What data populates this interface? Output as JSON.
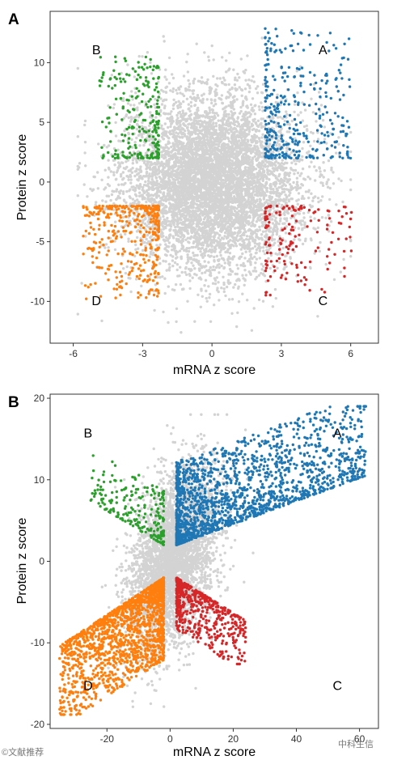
{
  "chart_data": [
    {
      "type": "scatter",
      "panel": "A",
      "xlabel": "mRNA z score",
      "ylabel": "Protein z score",
      "xlim": [
        -7,
        7.2
      ],
      "ylim": [
        -13.5,
        14.3
      ],
      "xticks": [
        -6,
        -3,
        0,
        3,
        6
      ],
      "yticks": [
        -10,
        -5,
        0,
        5,
        10
      ],
      "grid": false,
      "quadrant_labels": [
        {
          "label": "A",
          "x": 4.8,
          "y": 10.7
        },
        {
          "label": "B",
          "x": -5.0,
          "y": 10.7
        },
        {
          "label": "C",
          "x": 4.8,
          "y": -10.3
        },
        {
          "label": "D",
          "x": -5.0,
          "y": -10.3
        }
      ],
      "point_groups": [
        {
          "color": "#d3d3d3",
          "n": 6500,
          "x_range": [
            -5.8,
            6.0
          ],
          "y_range": [
            -12.6,
            12.2
          ],
          "x_sd": 1.9,
          "y_sd": 3.6
        },
        {
          "color": "#1f77b4",
          "n": 340,
          "x_range": [
            2.3,
            6.0
          ],
          "y_range": [
            2.0,
            12.9
          ]
        },
        {
          "color": "#2ca02c",
          "n": 230,
          "x_range": [
            -4.9,
            -2.3
          ],
          "y_range": [
            2.0,
            10.5
          ]
        },
        {
          "color": "#d62728",
          "n": 150,
          "x_range": [
            2.3,
            6.1
          ],
          "y_range": [
            -9.5,
            -2.0
          ]
        },
        {
          "color": "#ff7f0e",
          "n": 360,
          "x_range": [
            -5.6,
            -2.3
          ],
          "y_range": [
            -9.8,
            -2.0
          ]
        }
      ]
    },
    {
      "type": "scatter",
      "panel": "B",
      "xlabel": "mRNA z score",
      "ylabel": "Protein z score",
      "xlim": [
        -38,
        66
      ],
      "ylim": [
        -20.5,
        20.5
      ],
      "xticks": [
        -20,
        0,
        20,
        40,
        60
      ],
      "yticks": [
        -20,
        -10,
        0,
        10,
        20
      ],
      "grid": false,
      "quadrant_labels": [
        {
          "label": "A",
          "x": 53,
          "y": 15.2
        },
        {
          "label": "B",
          "x": -26,
          "y": 15.2
        },
        {
          "label": "C",
          "x": 53,
          "y": -15.8
        },
        {
          "label": "D",
          "x": -26,
          "y": -15.8
        }
      ],
      "point_groups": [
        {
          "color": "#d3d3d3",
          "n": 4000,
          "x_range": [
            -30,
            30
          ],
          "y_range": [
            -18,
            18
          ]
        },
        {
          "color": "#1f77b4",
          "n": 1700,
          "x_range": [
            2,
            62
          ],
          "y_range": [
            2.0,
            19.0
          ]
        },
        {
          "color": "#2ca02c",
          "n": 230,
          "x_range": [
            -26,
            -2
          ],
          "y_range": [
            2.0,
            13.2
          ]
        },
        {
          "color": "#d62728",
          "n": 520,
          "x_range": [
            2,
            24
          ],
          "y_range": [
            -12.6,
            -2.0
          ]
        },
        {
          "color": "#ff7f0e",
          "n": 1600,
          "x_range": [
            -35,
            -2
          ],
          "y_range": [
            -18.8,
            -2.0
          ]
        }
      ]
    }
  ],
  "watermarks": {
    "left": "©文献推荐",
    "right": "中科生信"
  }
}
